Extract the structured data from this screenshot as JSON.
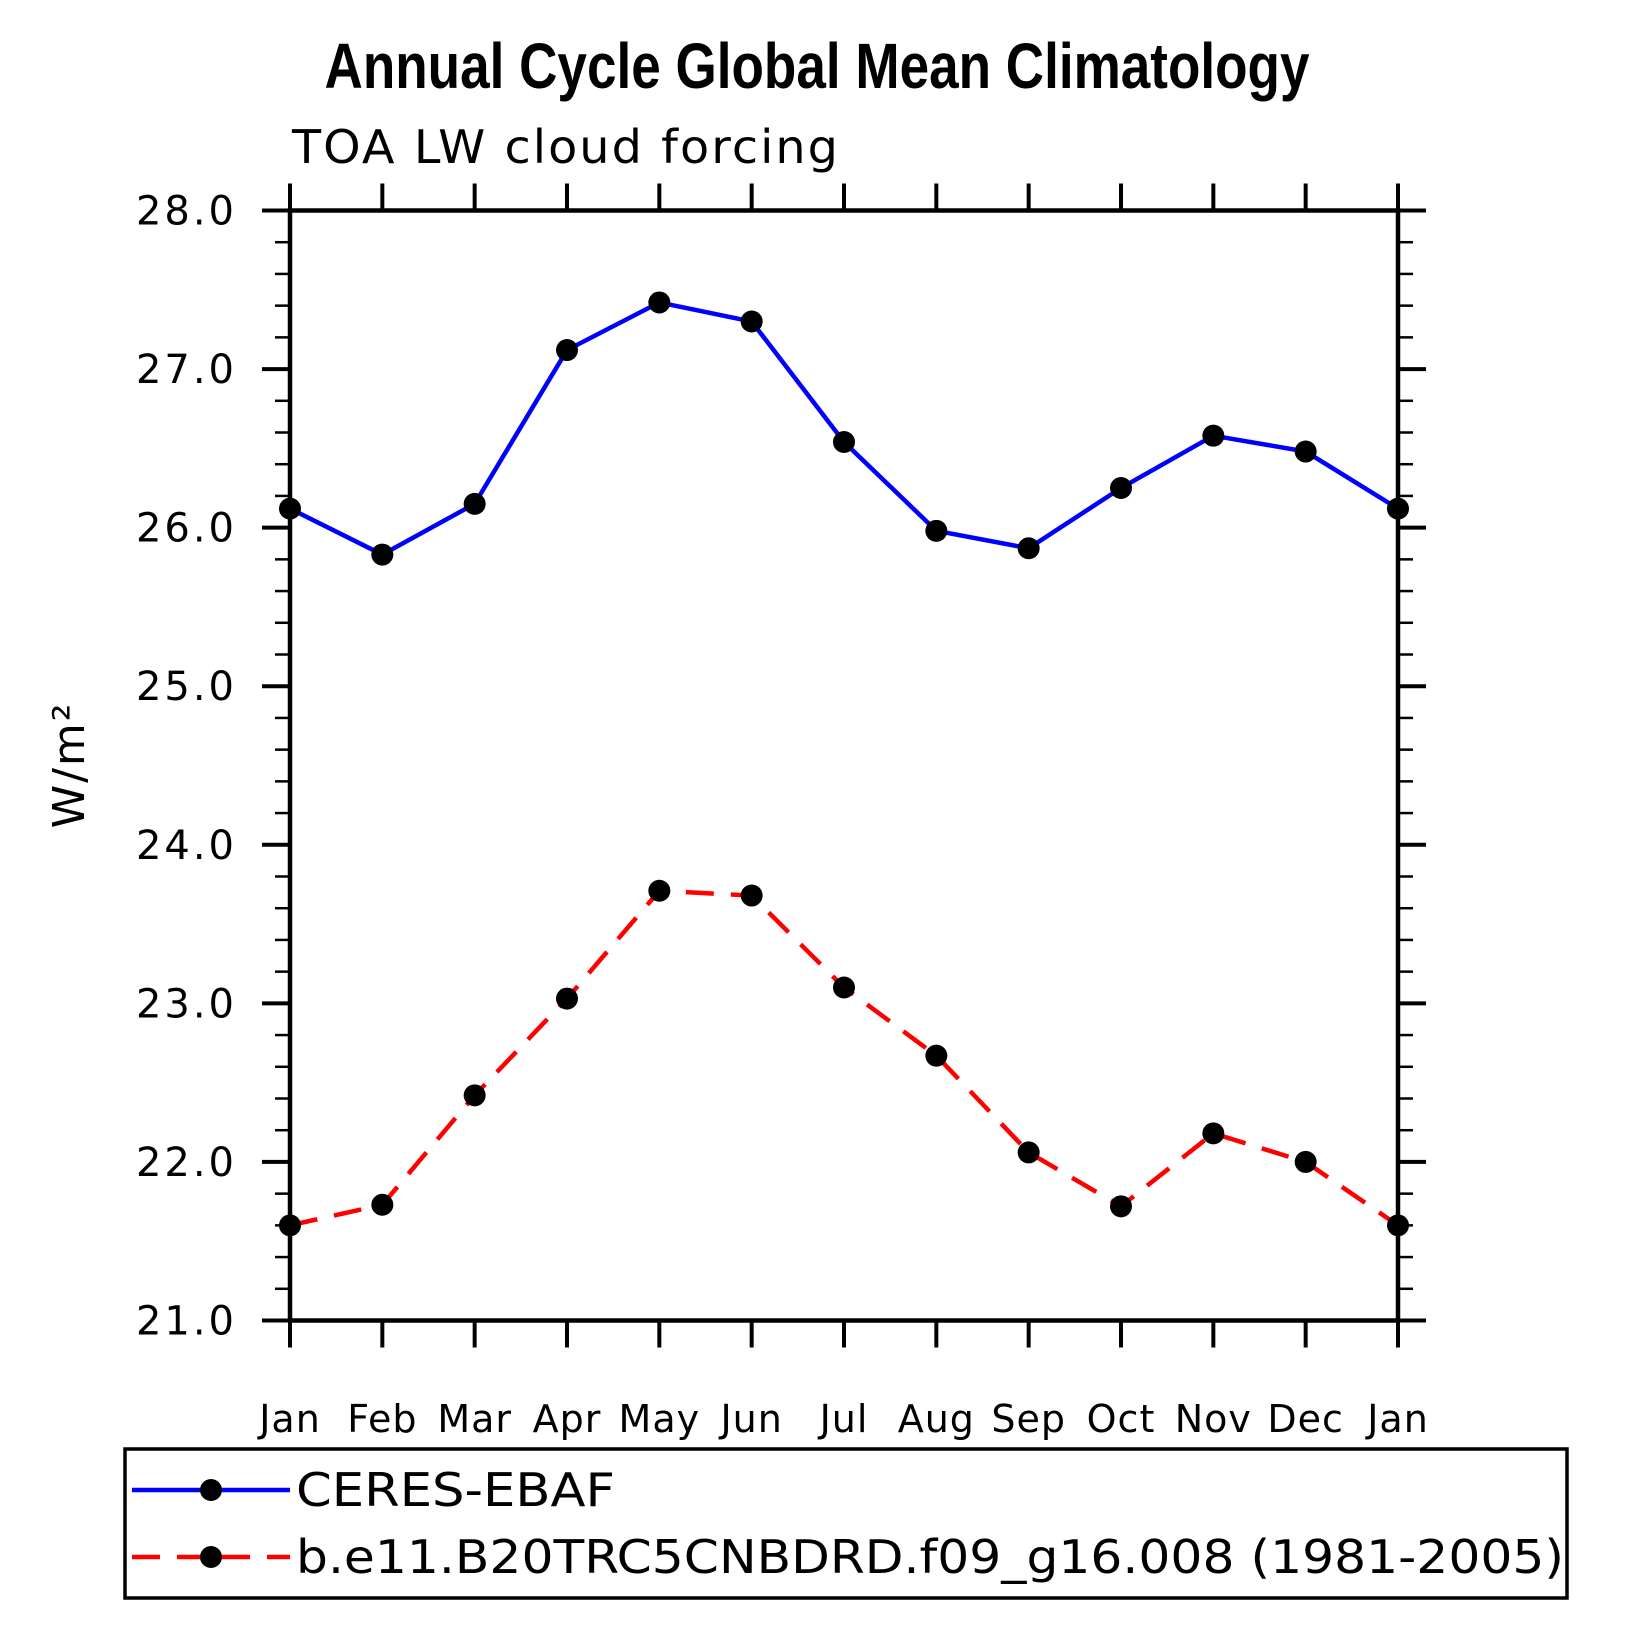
{
  "title": "Annual Cycle Global Mean Climatology",
  "subtitle": "TOA LW cloud forcing",
  "ylabel": "W/m²",
  "colors": {
    "obs_line": "#0000ff",
    "model_line": "#ff0000",
    "marker": "#000000",
    "axis": "#000000",
    "background": "#ffffff"
  },
  "chart_data": {
    "type": "line",
    "categories": [
      "Jan",
      "Feb",
      "Mar",
      "Apr",
      "May",
      "Jun",
      "Jul",
      "Aug",
      "Sep",
      "Oct",
      "Nov",
      "Dec",
      "Jan"
    ],
    "series": [
      {
        "name": "CERES-EBAF",
        "color": "#0000ff",
        "style": "solid",
        "marker": "filled-circle",
        "values": [
          26.12,
          25.83,
          26.15,
          27.12,
          27.42,
          27.3,
          26.54,
          25.98,
          25.87,
          26.25,
          26.58,
          26.48,
          26.12
        ]
      },
      {
        "name": "b.e11.B20TRC5CNBDRD.f09_g16.008 (1981-2005)",
        "color": "#ff0000",
        "style": "dashed",
        "marker": "filled-circle",
        "values": [
          21.6,
          21.73,
          22.42,
          23.03,
          23.71,
          23.68,
          23.1,
          22.67,
          22.06,
          21.72,
          22.18,
          22.0,
          21.6
        ]
      }
    ],
    "xlabel": "",
    "ylabel": "W/m²",
    "ylim": [
      21.0,
      28.0
    ],
    "ytick_step": 1.0,
    "yminor_step": 0.2,
    "ytick_labels": [
      "28.0",
      "27.0",
      "26.0",
      "25.0",
      "24.0",
      "23.0",
      "22.0",
      "21.0"
    ],
    "grid": false,
    "legend_position": "bottom"
  }
}
